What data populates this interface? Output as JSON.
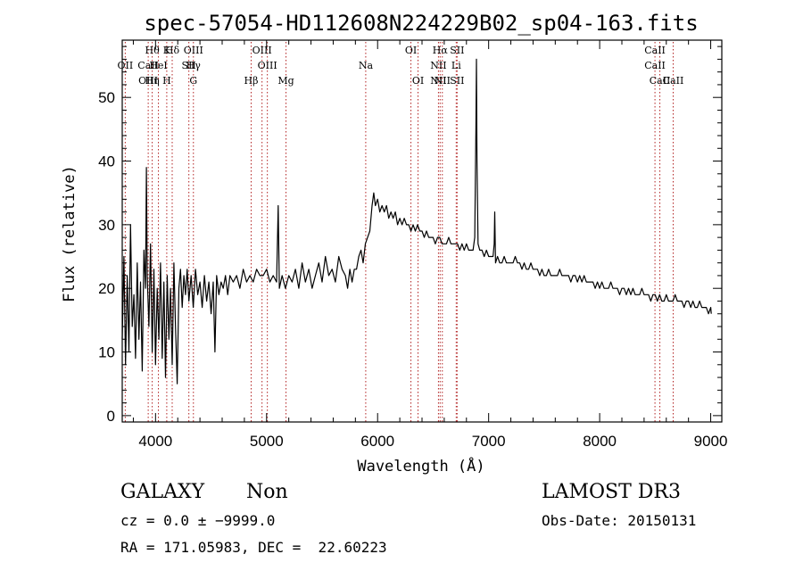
{
  "chart_data": {
    "type": "line",
    "title": "spec-57054-HD112608N224229B02_sp04-163.fits",
    "xlabel": "Wavelength (Å)",
    "ylabel": "Flux (relative)",
    "xlim": [
      3700,
      9100
    ],
    "ylim": [
      -1,
      59
    ],
    "xticks": [
      4000,
      5000,
      6000,
      7000,
      8000,
      9000
    ],
    "yticks": [
      0,
      10,
      20,
      30,
      40,
      50
    ],
    "grid": false,
    "colors": {
      "spectrum": "#000000",
      "lines": "#b22222"
    },
    "series": [
      {
        "values": [
          [
            3700,
            12
          ],
          [
            3715,
            25
          ],
          [
            3730,
            8
          ],
          [
            3745,
            22
          ],
          [
            3760,
            10
          ],
          [
            3775,
            30
          ],
          [
            3790,
            14
          ],
          [
            3805,
            19
          ],
          [
            3820,
            9
          ],
          [
            3835,
            24
          ],
          [
            3850,
            12
          ],
          [
            3865,
            21
          ],
          [
            3880,
            7
          ],
          [
            3895,
            26
          ],
          [
            3910,
            20
          ],
          [
            3918,
            39
          ],
          [
            3925,
            22
          ],
          [
            3940,
            14
          ],
          [
            3955,
            27
          ],
          [
            3970,
            10
          ],
          [
            3985,
            23
          ],
          [
            4000,
            8
          ],
          [
            4015,
            20
          ],
          [
            4030,
            12
          ],
          [
            4045,
            24
          ],
          [
            4060,
            9
          ],
          [
            4075,
            21
          ],
          [
            4090,
            6
          ],
          [
            4105,
            22
          ],
          [
            4120,
            12
          ],
          [
            4135,
            20
          ],
          [
            4150,
            8
          ],
          [
            4165,
            24
          ],
          [
            4180,
            14
          ],
          [
            4195,
            5
          ],
          [
            4210,
            20
          ],
          [
            4225,
            23
          ],
          [
            4240,
            17
          ],
          [
            4255,
            22
          ],
          [
            4270,
            19
          ],
          [
            4285,
            23
          ],
          [
            4300,
            18
          ],
          [
            4320,
            22
          ],
          [
            4340,
            17
          ],
          [
            4360,
            23
          ],
          [
            4380,
            19
          ],
          [
            4400,
            21
          ],
          [
            4420,
            17
          ],
          [
            4440,
            22
          ],
          [
            4460,
            18
          ],
          [
            4480,
            21
          ],
          [
            4500,
            16
          ],
          [
            4520,
            21
          ],
          [
            4535,
            10
          ],
          [
            4550,
            22
          ],
          [
            4570,
            19
          ],
          [
            4590,
            21
          ],
          [
            4610,
            20
          ],
          [
            4630,
            22
          ],
          [
            4650,
            19
          ],
          [
            4670,
            22
          ],
          [
            4700,
            21
          ],
          [
            4730,
            22
          ],
          [
            4760,
            20
          ],
          [
            4790,
            23
          ],
          [
            4820,
            21
          ],
          [
            4850,
            22
          ],
          [
            4880,
            21
          ],
          [
            4910,
            23
          ],
          [
            4940,
            22
          ],
          [
            4970,
            22
          ],
          [
            5000,
            23
          ],
          [
            5030,
            21
          ],
          [
            5060,
            22
          ],
          [
            5090,
            21
          ],
          [
            5105,
            33
          ],
          [
            5115,
            20
          ],
          [
            5140,
            22
          ],
          [
            5170,
            20
          ],
          [
            5200,
            22
          ],
          [
            5230,
            21
          ],
          [
            5260,
            23
          ],
          [
            5290,
            20
          ],
          [
            5320,
            24
          ],
          [
            5350,
            21
          ],
          [
            5380,
            23
          ],
          [
            5410,
            20
          ],
          [
            5440,
            22
          ],
          [
            5470,
            24
          ],
          [
            5500,
            21
          ],
          [
            5530,
            25
          ],
          [
            5560,
            22
          ],
          [
            5590,
            23
          ],
          [
            5620,
            21
          ],
          [
            5650,
            25
          ],
          [
            5680,
            23
          ],
          [
            5710,
            22
          ],
          [
            5730,
            20
          ],
          [
            5750,
            23
          ],
          [
            5770,
            21
          ],
          [
            5790,
            23
          ],
          [
            5810,
            23
          ],
          [
            5830,
            25
          ],
          [
            5850,
            26
          ],
          [
            5870,
            24
          ],
          [
            5890,
            27
          ],
          [
            5910,
            28
          ],
          [
            5930,
            29
          ],
          [
            5950,
            33
          ],
          [
            5965,
            35
          ],
          [
            5980,
            33
          ],
          [
            6000,
            34
          ],
          [
            6020,
            32
          ],
          [
            6040,
            33
          ],
          [
            6060,
            32
          ],
          [
            6080,
            33
          ],
          [
            6100,
            31
          ],
          [
            6120,
            32
          ],
          [
            6140,
            31
          ],
          [
            6160,
            32
          ],
          [
            6180,
            30
          ],
          [
            6200,
            31
          ],
          [
            6220,
            30
          ],
          [
            6240,
            31
          ],
          [
            6260,
            30
          ],
          [
            6280,
            30
          ],
          [
            6300,
            29
          ],
          [
            6320,
            30
          ],
          [
            6340,
            29
          ],
          [
            6360,
            30
          ],
          [
            6380,
            29
          ],
          [
            6400,
            29
          ],
          [
            6420,
            28
          ],
          [
            6440,
            29
          ],
          [
            6460,
            28
          ],
          [
            6480,
            28
          ],
          [
            6500,
            28
          ],
          [
            6520,
            27
          ],
          [
            6540,
            28
          ],
          [
            6560,
            28
          ],
          [
            6580,
            27
          ],
          [
            6600,
            27
          ],
          [
            6620,
            27
          ],
          [
            6640,
            28
          ],
          [
            6660,
            27
          ],
          [
            6680,
            27
          ],
          [
            6700,
            27
          ],
          [
            6720,
            27
          ],
          [
            6740,
            26
          ],
          [
            6760,
            27
          ],
          [
            6780,
            26
          ],
          [
            6800,
            27
          ],
          [
            6820,
            26
          ],
          [
            6840,
            26
          ],
          [
            6860,
            26
          ],
          [
            6875,
            28
          ],
          [
            6885,
            45
          ],
          [
            6890,
            56
          ],
          [
            6895,
            40
          ],
          [
            6905,
            27
          ],
          [
            6920,
            26
          ],
          [
            6940,
            26
          ],
          [
            6960,
            25
          ],
          [
            6980,
            26
          ],
          [
            7000,
            25
          ],
          [
            7020,
            25
          ],
          [
            7040,
            25
          ],
          [
            7050,
            27
          ],
          [
            7055,
            32
          ],
          [
            7062,
            24
          ],
          [
            7080,
            25
          ],
          [
            7100,
            24
          ],
          [
            7120,
            24
          ],
          [
            7140,
            25
          ],
          [
            7160,
            24
          ],
          [
            7180,
            24
          ],
          [
            7200,
            24
          ],
          [
            7220,
            24
          ],
          [
            7240,
            25
          ],
          [
            7260,
            24
          ],
          [
            7280,
            24
          ],
          [
            7300,
            23
          ],
          [
            7320,
            24
          ],
          [
            7340,
            23
          ],
          [
            7360,
            23
          ],
          [
            7380,
            24
          ],
          [
            7400,
            23
          ],
          [
            7420,
            23
          ],
          [
            7440,
            23
          ],
          [
            7460,
            22
          ],
          [
            7480,
            23
          ],
          [
            7500,
            22
          ],
          [
            7520,
            22
          ],
          [
            7540,
            23
          ],
          [
            7560,
            22
          ],
          [
            7580,
            22
          ],
          [
            7600,
            22
          ],
          [
            7620,
            22
          ],
          [
            7640,
            23
          ],
          [
            7660,
            22
          ],
          [
            7680,
            22
          ],
          [
            7700,
            22
          ],
          [
            7720,
            22
          ],
          [
            7740,
            21
          ],
          [
            7760,
            22
          ],
          [
            7780,
            22
          ],
          [
            7800,
            21
          ],
          [
            7820,
            22
          ],
          [
            7840,
            21
          ],
          [
            7860,
            22
          ],
          [
            7880,
            21
          ],
          [
            7900,
            21
          ],
          [
            7920,
            21
          ],
          [
            7940,
            21
          ],
          [
            7960,
            20
          ],
          [
            7980,
            21
          ],
          [
            8000,
            20
          ],
          [
            8020,
            21
          ],
          [
            8040,
            20
          ],
          [
            8060,
            20
          ],
          [
            8080,
            20
          ],
          [
            8100,
            21
          ],
          [
            8120,
            20
          ],
          [
            8140,
            20
          ],
          [
            8160,
            20
          ],
          [
            8180,
            19
          ],
          [
            8200,
            20
          ],
          [
            8220,
            20
          ],
          [
            8240,
            19
          ],
          [
            8260,
            20
          ],
          [
            8280,
            19
          ],
          [
            8300,
            20
          ],
          [
            8320,
            19
          ],
          [
            8340,
            19
          ],
          [
            8360,
            19
          ],
          [
            8380,
            20
          ],
          [
            8400,
            19
          ],
          [
            8420,
            19
          ],
          [
            8440,
            19
          ],
          [
            8460,
            18
          ],
          [
            8480,
            19
          ],
          [
            8500,
            19
          ],
          [
            8520,
            18
          ],
          [
            8540,
            19
          ],
          [
            8560,
            18
          ],
          [
            8580,
            18
          ],
          [
            8600,
            19
          ],
          [
            8620,
            18
          ],
          [
            8640,
            18
          ],
          [
            8660,
            18
          ],
          [
            8680,
            19
          ],
          [
            8700,
            18
          ],
          [
            8720,
            18
          ],
          [
            8740,
            18
          ],
          [
            8760,
            17
          ],
          [
            8780,
            18
          ],
          [
            8800,
            18
          ],
          [
            8820,
            17
          ],
          [
            8840,
            18
          ],
          [
            8860,
            17
          ],
          [
            8880,
            17
          ],
          [
            8900,
            18
          ],
          [
            8920,
            17
          ],
          [
            8940,
            17
          ],
          [
            8960,
            17
          ],
          [
            8980,
            16
          ],
          [
            9000,
            17
          ],
          [
            9005,
            16
          ]
        ]
      }
    ],
    "lines": [
      {
        "wavelength": 3727,
        "labels": [
          "OII"
        ],
        "rows": [
          1
        ]
      },
      {
        "wavelength": 3934,
        "labels": [
          "CaII",
          "OIII"
        ],
        "rows": [
          1,
          2
        ]
      },
      {
        "wavelength": 3970,
        "labels": [
          "Hθ",
          "Hη"
        ],
        "rows": [
          0,
          2
        ]
      },
      {
        "wavelength": 4026,
        "labels": [
          "HeI"
        ],
        "rows": [
          1
        ]
      },
      {
        "wavelength": 4101,
        "labels": [
          "K",
          "H"
        ],
        "rows": [
          0,
          2
        ]
      },
      {
        "wavelength": 4150,
        "labels": [
          "Hδ"
        ],
        "rows": [
          0
        ]
      },
      {
        "wavelength": 4300,
        "labels": [
          "SII"
        ],
        "rows": [
          1
        ]
      },
      {
        "wavelength": 4341,
        "labels": [
          "OIII",
          "Hγ",
          "G"
        ],
        "rows": [
          0,
          1,
          2
        ]
      },
      {
        "wavelength": 4861,
        "labels": [
          "Hβ"
        ],
        "rows": [
          2
        ]
      },
      {
        "wavelength": 4959,
        "labels": [
          "OIII"
        ],
        "rows": [
          0
        ]
      },
      {
        "wavelength": 5007,
        "labels": [
          "OIII"
        ],
        "rows": [
          1
        ]
      },
      {
        "wavelength": 5175,
        "labels": [
          "Mg"
        ],
        "rows": [
          2
        ]
      },
      {
        "wavelength": 5893,
        "labels": [
          "Na"
        ],
        "rows": [
          1
        ]
      },
      {
        "wavelength": 6300,
        "labels": [
          "OI"
        ],
        "rows": [
          0
        ]
      },
      {
        "wavelength": 6364,
        "labels": [
          "OI"
        ],
        "rows": [
          2
        ]
      },
      {
        "wavelength": 6548,
        "labels": [
          "NII",
          "NII"
        ],
        "rows": [
          1,
          2
        ]
      },
      {
        "wavelength": 6563,
        "labels": [
          "Hα"
        ],
        "rows": [
          0
        ]
      },
      {
        "wavelength": 6583,
        "labels": [
          "NII"
        ],
        "rows": [
          2
        ]
      },
      {
        "wavelength": 6708,
        "labels": [
          "Li"
        ],
        "rows": [
          1
        ]
      },
      {
        "wavelength": 6716,
        "labels": [
          "SII",
          "SII"
        ],
        "rows": [
          0,
          2
        ]
      },
      {
        "wavelength": 8498,
        "labels": [
          "CaII",
          "CaII"
        ],
        "rows": [
          0,
          1
        ]
      },
      {
        "wavelength": 8542,
        "labels": [
          "CaII"
        ],
        "rows": [
          2
        ]
      },
      {
        "wavelength": 8662,
        "labels": [
          "CaII"
        ],
        "rows": [
          2
        ]
      }
    ]
  },
  "info": {
    "class": "GALAXY",
    "subclass": "Non",
    "cz": "cz = 0.0 ± −9999.0",
    "radec": "RA = 171.05983, DEC =  22.60223",
    "survey": "LAMOST DR3",
    "obsdate": "Obs-Date: 20150131"
  }
}
